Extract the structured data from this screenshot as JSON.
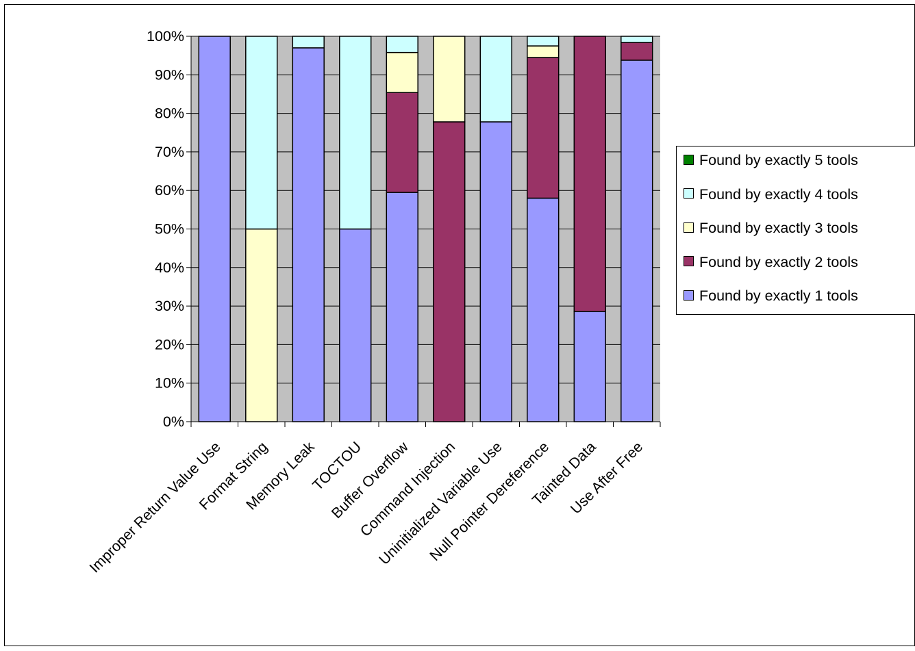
{
  "chart_data": {
    "type": "bar",
    "stacked": true,
    "percent_stacked": true,
    "categories": [
      "Improper Return Value Use",
      "Format String",
      "Memory Leak",
      "TOCTOU",
      "Buffer Overflow",
      "Command Injection",
      "Uninitialized Variable Use",
      "Null Pointer Dereference",
      "Tainted Data",
      "Use After Free"
    ],
    "series": [
      {
        "name": "Found by exactly 1 tools",
        "color": "#9999FF",
        "values": [
          100,
          0,
          97,
          50,
          59.5,
          0,
          77.8,
          58,
          28.6,
          93.8
        ]
      },
      {
        "name": "Found by exactly 2 tools",
        "color": "#993366",
        "values": [
          0,
          0,
          0,
          0,
          25.9,
          77.8,
          0,
          36.5,
          71.4,
          4.6
        ]
      },
      {
        "name": "Found by exactly 3 tools",
        "color": "#FFFFCC",
        "values": [
          0,
          50,
          0,
          0,
          10.4,
          22.2,
          0,
          3,
          0,
          0
        ]
      },
      {
        "name": "Found by exactly 4 tools",
        "color": "#CCFFFF",
        "values": [
          0,
          50,
          3,
          50,
          4.2,
          0,
          22.2,
          2.5,
          0,
          1.6
        ]
      },
      {
        "name": "Found by exactly 5 tools",
        "color": "#008000",
        "values": [
          0,
          0,
          0,
          0,
          0,
          0,
          0,
          0,
          0,
          0
        ]
      }
    ],
    "legend_order": [
      4,
      3,
      2,
      1,
      0
    ],
    "yticks": [
      "0%",
      "10%",
      "20%",
      "30%",
      "40%",
      "50%",
      "60%",
      "70%",
      "80%",
      "90%",
      "100%"
    ],
    "ylim": [
      0,
      100
    ],
    "title": "",
    "xlabel": "",
    "ylabel": "",
    "grid": true,
    "plot_background": "#C0C0C0",
    "legend_position": "right"
  }
}
